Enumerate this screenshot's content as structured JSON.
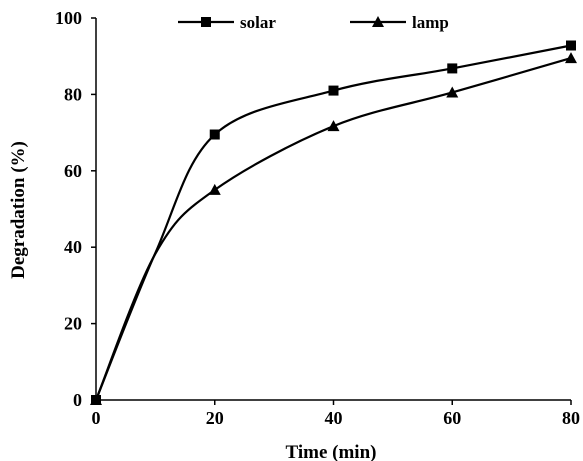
{
  "chart_data": {
    "type": "line",
    "xlabel": "Time (min)",
    "ylabel": "Degradation (%)",
    "xlim": [
      0,
      80
    ],
    "ylim": [
      0,
      100
    ],
    "xticks": [
      "0",
      "20",
      "40",
      "60",
      "80"
    ],
    "yticks": [
      "0",
      "20",
      "40",
      "60",
      "80",
      "100"
    ],
    "grid": false,
    "legend_position": "top",
    "series": [
      {
        "name": "solar",
        "marker": "square",
        "color": "#000000",
        "points": [
          {
            "x": 0,
            "y": 0
          },
          {
            "x": 10,
            "y": 38.5
          },
          {
            "x": 20,
            "y": 69.5
          },
          {
            "x": 40,
            "y": 81
          },
          {
            "x": 60,
            "y": 86.8
          },
          {
            "x": 80,
            "y": 92.8
          }
        ]
      },
      {
        "name": "lamp",
        "marker": "triangle",
        "color": "#000000",
        "points": [
          {
            "x": 0,
            "y": 0
          },
          {
            "x": 10,
            "y": 38.3
          },
          {
            "x": 20,
            "y": 55
          },
          {
            "x": 40,
            "y": 71.7
          },
          {
            "x": 60,
            "y": 80.5
          },
          {
            "x": 80,
            "y": 89.5
          }
        ]
      }
    ]
  }
}
